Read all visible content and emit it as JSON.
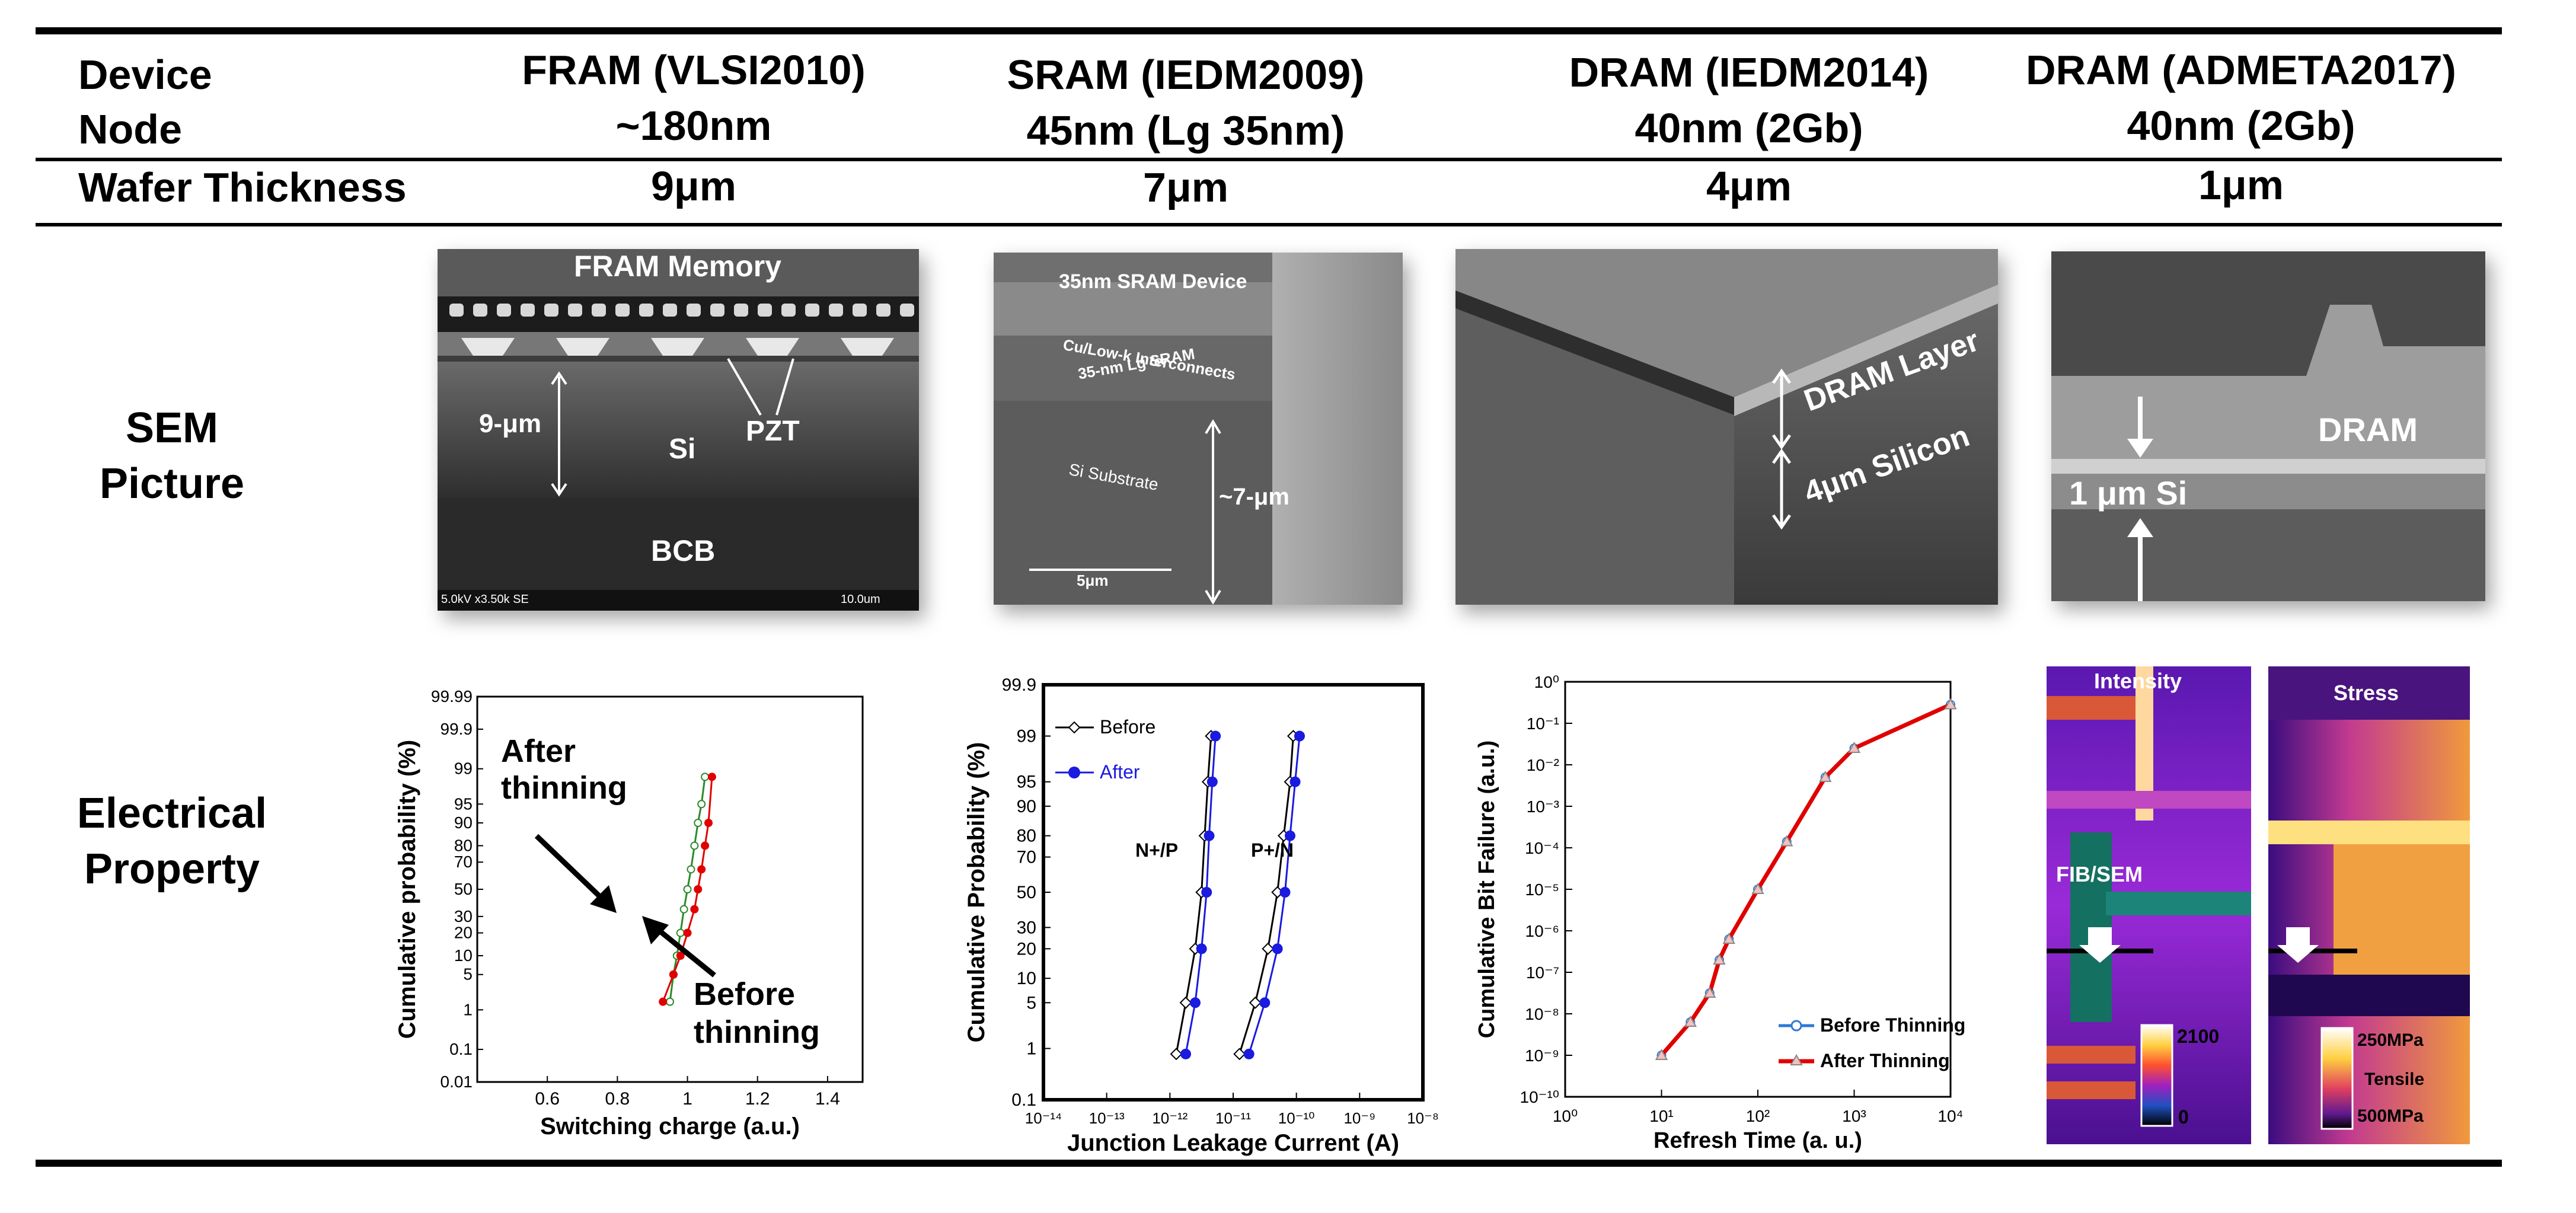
{
  "header": {
    "row1_label": [
      "Device",
      "Node"
    ],
    "row2_label": "Wafer Thickness",
    "columns": [
      {
        "device": "FRAM (VLSI2010)",
        "node": "~180nm",
        "thickness": "9μm"
      },
      {
        "device": "SRAM (IEDM2009)",
        "node": "45nm (Lg 35nm)",
        "thickness": "7μm"
      },
      {
        "device": "DRAM (IEDM2014)",
        "node": "40nm (2Gb)",
        "thickness": "4μm"
      },
      {
        "device": "DRAM (ADMETA2017)",
        "node": "40nm (2Gb)",
        "thickness": "1μm"
      }
    ]
  },
  "rows": {
    "sem_label": [
      "SEM",
      "Picture"
    ],
    "electrical_label": [
      "Electrical",
      "Property"
    ]
  },
  "sem": {
    "fram": {
      "title": "FRAM Memory",
      "thickness": "9-μm",
      "si": "Si",
      "pzt": "PZT",
      "bcb": "BCB",
      "footer_left": "5.0kV x3.50k SE",
      "footer_right": "10.0um"
    },
    "sram": {
      "title": "35nm SRAM Device",
      "interconnects": "Cu/Low-k Interconnects",
      "lg": "35-nm Lg SRAM",
      "substrate": "Si Substrate",
      "thickness": "~7-μm",
      "scale": "5μm"
    },
    "dram1": {
      "layer": "DRAM Layer",
      "silicon": "4μm Silicon"
    },
    "dram2": {
      "dram": "DRAM",
      "si": "1 μm Si"
    }
  },
  "heatmap": {
    "intensity_title": "Intensity",
    "stress_title": "Stress",
    "fib": "FIB/SEM",
    "intensity_max": "2100",
    "intensity_min": "0",
    "stress_top": "250MPa",
    "stress_mid": "Tensile",
    "stress_bottom": "500MPa"
  },
  "chart_data": [
    {
      "type": "scatter",
      "ylabel": "Cumulative probability (%)",
      "xlabel": "Switching charge (a.u.)",
      "xlim": [
        0.4,
        1.5
      ],
      "xticks": [
        "0.6",
        "0.8",
        "1",
        "1.2",
        "1.4"
      ],
      "yticks": [
        "99.99",
        "99.9",
        "99",
        "95",
        "90",
        "80",
        "70",
        "50",
        "30",
        "20",
        "10",
        "5",
        "1",
        "0.1",
        "0.01"
      ],
      "annotations": [
        "After thinning",
        "Before thinning"
      ],
      "series": [
        {
          "color": "#2a8a2a",
          "x": [
            0.95,
            0.96,
            0.97,
            0.98,
            0.99,
            1.0,
            1.01,
            1.02,
            1.03,
            1.04,
            1.05
          ],
          "y": [
            1.5,
            5,
            10,
            20,
            35,
            50,
            65,
            80,
            90,
            95,
            98.5
          ]
        },
        {
          "color": "#e00000",
          "x": [
            0.93,
            0.96,
            0.98,
            1.0,
            1.02,
            1.03,
            1.04,
            1.05,
            1.06,
            1.07
          ],
          "y": [
            1.5,
            5,
            10,
            20,
            35,
            50,
            65,
            80,
            90,
            98.5
          ]
        }
      ]
    },
    {
      "type": "scatter",
      "ylabel": "Cumulative Probability (%)",
      "xlabel": "Junction Leakage Current (A)",
      "xticks": [
        "10⁻¹⁴",
        "10⁻¹³",
        "10⁻¹²",
        "10⁻¹¹",
        "10⁻¹⁰",
        "10⁻⁹",
        "10⁻⁸"
      ],
      "yticks": [
        "99.9",
        "99",
        "95",
        "90",
        "80",
        "70",
        "50",
        "30",
        "20",
        "10",
        "5",
        "1",
        "0.1"
      ],
      "legend": [
        "Before",
        "After"
      ],
      "annotations": [
        "N+/P",
        "P+/N"
      ],
      "series": [
        {
          "name": "Before",
          "color": "#000000",
          "groups": [
            {
              "x": [
                -11.9,
                -11.75,
                -11.6,
                -11.5,
                -11.45,
                -11.4,
                -11.35
              ],
              "y": [
                0.8,
                5,
                20,
                50,
                80,
                95,
                99
              ]
            },
            {
              "x": [
                -10.9,
                -10.65,
                -10.45,
                -10.3,
                -10.2,
                -10.1,
                -10.05
              ],
              "y": [
                0.8,
                5,
                20,
                50,
                80,
                95,
                99
              ]
            }
          ]
        },
        {
          "name": "After",
          "color": "#1a1ae0",
          "groups": [
            {
              "x": [
                -11.75,
                -11.6,
                -11.5,
                -11.42,
                -11.38,
                -11.33,
                -11.28
              ],
              "y": [
                0.8,
                5,
                20,
                50,
                80,
                95,
                99
              ]
            },
            {
              "x": [
                -10.75,
                -10.5,
                -10.3,
                -10.18,
                -10.1,
                -10.02,
                -9.95
              ],
              "y": [
                0.8,
                5,
                20,
                50,
                80,
                95,
                99
              ]
            }
          ]
        }
      ]
    },
    {
      "type": "line",
      "ylabel": "Cumulative Bit Failure (a.u.)",
      "xlabel": "Refresh Time (a. u.)",
      "xticks": [
        "10⁰",
        "10¹",
        "10²",
        "10³",
        "10⁴"
      ],
      "yticks": [
        "10⁰",
        "10⁻¹",
        "10⁻²",
        "10⁻³",
        "10⁻⁴",
        "10⁻⁵",
        "10⁻⁶",
        "10⁻⁷",
        "10⁻⁸",
        "10⁻⁹",
        "10⁻¹⁰"
      ],
      "series": [
        {
          "name": "Before Thinning",
          "color": "#2f78d8",
          "log_x": [
            1.0,
            1.3,
            1.5,
            1.6,
            1.7,
            2.0,
            2.3,
            2.7,
            3.0,
            4.0
          ],
          "log_y": [
            -9.0,
            -8.2,
            -7.5,
            -6.7,
            -6.2,
            -5.0,
            -3.85,
            -2.3,
            -1.6,
            -0.55
          ]
        },
        {
          "name": "After Thinning",
          "color": "#e00000",
          "log_x": [
            1.0,
            1.3,
            1.5,
            1.6,
            1.7,
            2.0,
            2.3,
            2.7,
            3.0,
            4.0
          ],
          "log_y": [
            -9.0,
            -8.2,
            -7.5,
            -6.7,
            -6.2,
            -5.0,
            -3.85,
            -2.3,
            -1.6,
            -0.55
          ]
        }
      ]
    }
  ]
}
